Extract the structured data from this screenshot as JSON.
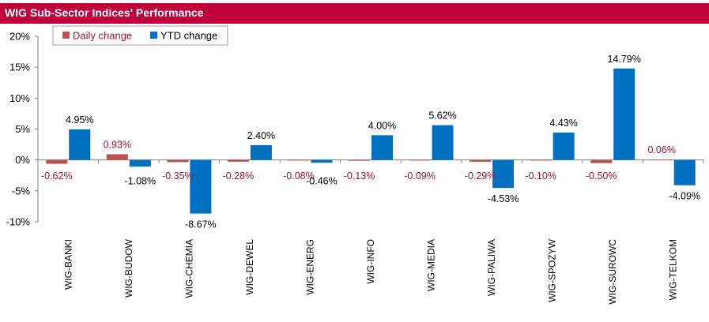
{
  "header": {
    "title": "WIG Sub-Sector Indices' Performance"
  },
  "colors": {
    "title_bg": "#c0003a",
    "daily": "#c0504d",
    "ytd": "#0070c0",
    "daily_label": "#a3123f",
    "ytd_label": "#000000"
  },
  "chart_data": {
    "type": "bar",
    "title": "WIG Sub-Sector Indices' Performance",
    "categories": [
      "WIG-BANKI",
      "WIG-BUDOW",
      "WIG-CHEMIA",
      "WIG-DEWEL",
      "WIG-ENERG",
      "WIG-INFO",
      "WIG-MEDIA",
      "WIG-PALIWA",
      "WIG-SPOZYW",
      "WIG-SUROWC",
      "WIG-TELKOM"
    ],
    "series": [
      {
        "name": "Daily change",
        "values": [
          -0.62,
          0.93,
          -0.35,
          -0.28,
          -0.08,
          -0.13,
          -0.09,
          -0.29,
          -0.1,
          -0.5,
          0.06
        ],
        "labels": [
          "-0.62%",
          "0.93%",
          "-0.35%",
          "-0.28%",
          "-0.08%",
          "-0.13%",
          "-0.09%",
          "-0.29%",
          "-0.10%",
          "-0.50%",
          "0.06%"
        ]
      },
      {
        "name": "YTD change",
        "values": [
          4.95,
          -1.08,
          -8.67,
          2.4,
          -0.46,
          4.0,
          5.62,
          -4.53,
          4.43,
          14.79,
          -4.09
        ],
        "labels": [
          "4.95%",
          "-1.08%",
          "-8.67%",
          "2.40%",
          "-0.46%",
          "4.00%",
          "5.62%",
          "-4.53%",
          "4.43%",
          "14.79%",
          "-4.09%"
        ]
      }
    ],
    "ylim": [
      -10,
      20
    ],
    "yticks": [
      20,
      15,
      10,
      5,
      0,
      -5,
      -10
    ],
    "ytick_labels": [
      "20%",
      "15%",
      "10%",
      "5%",
      "0%",
      "-5%",
      "-10%"
    ],
    "legend": "top-left",
    "grid": false
  }
}
